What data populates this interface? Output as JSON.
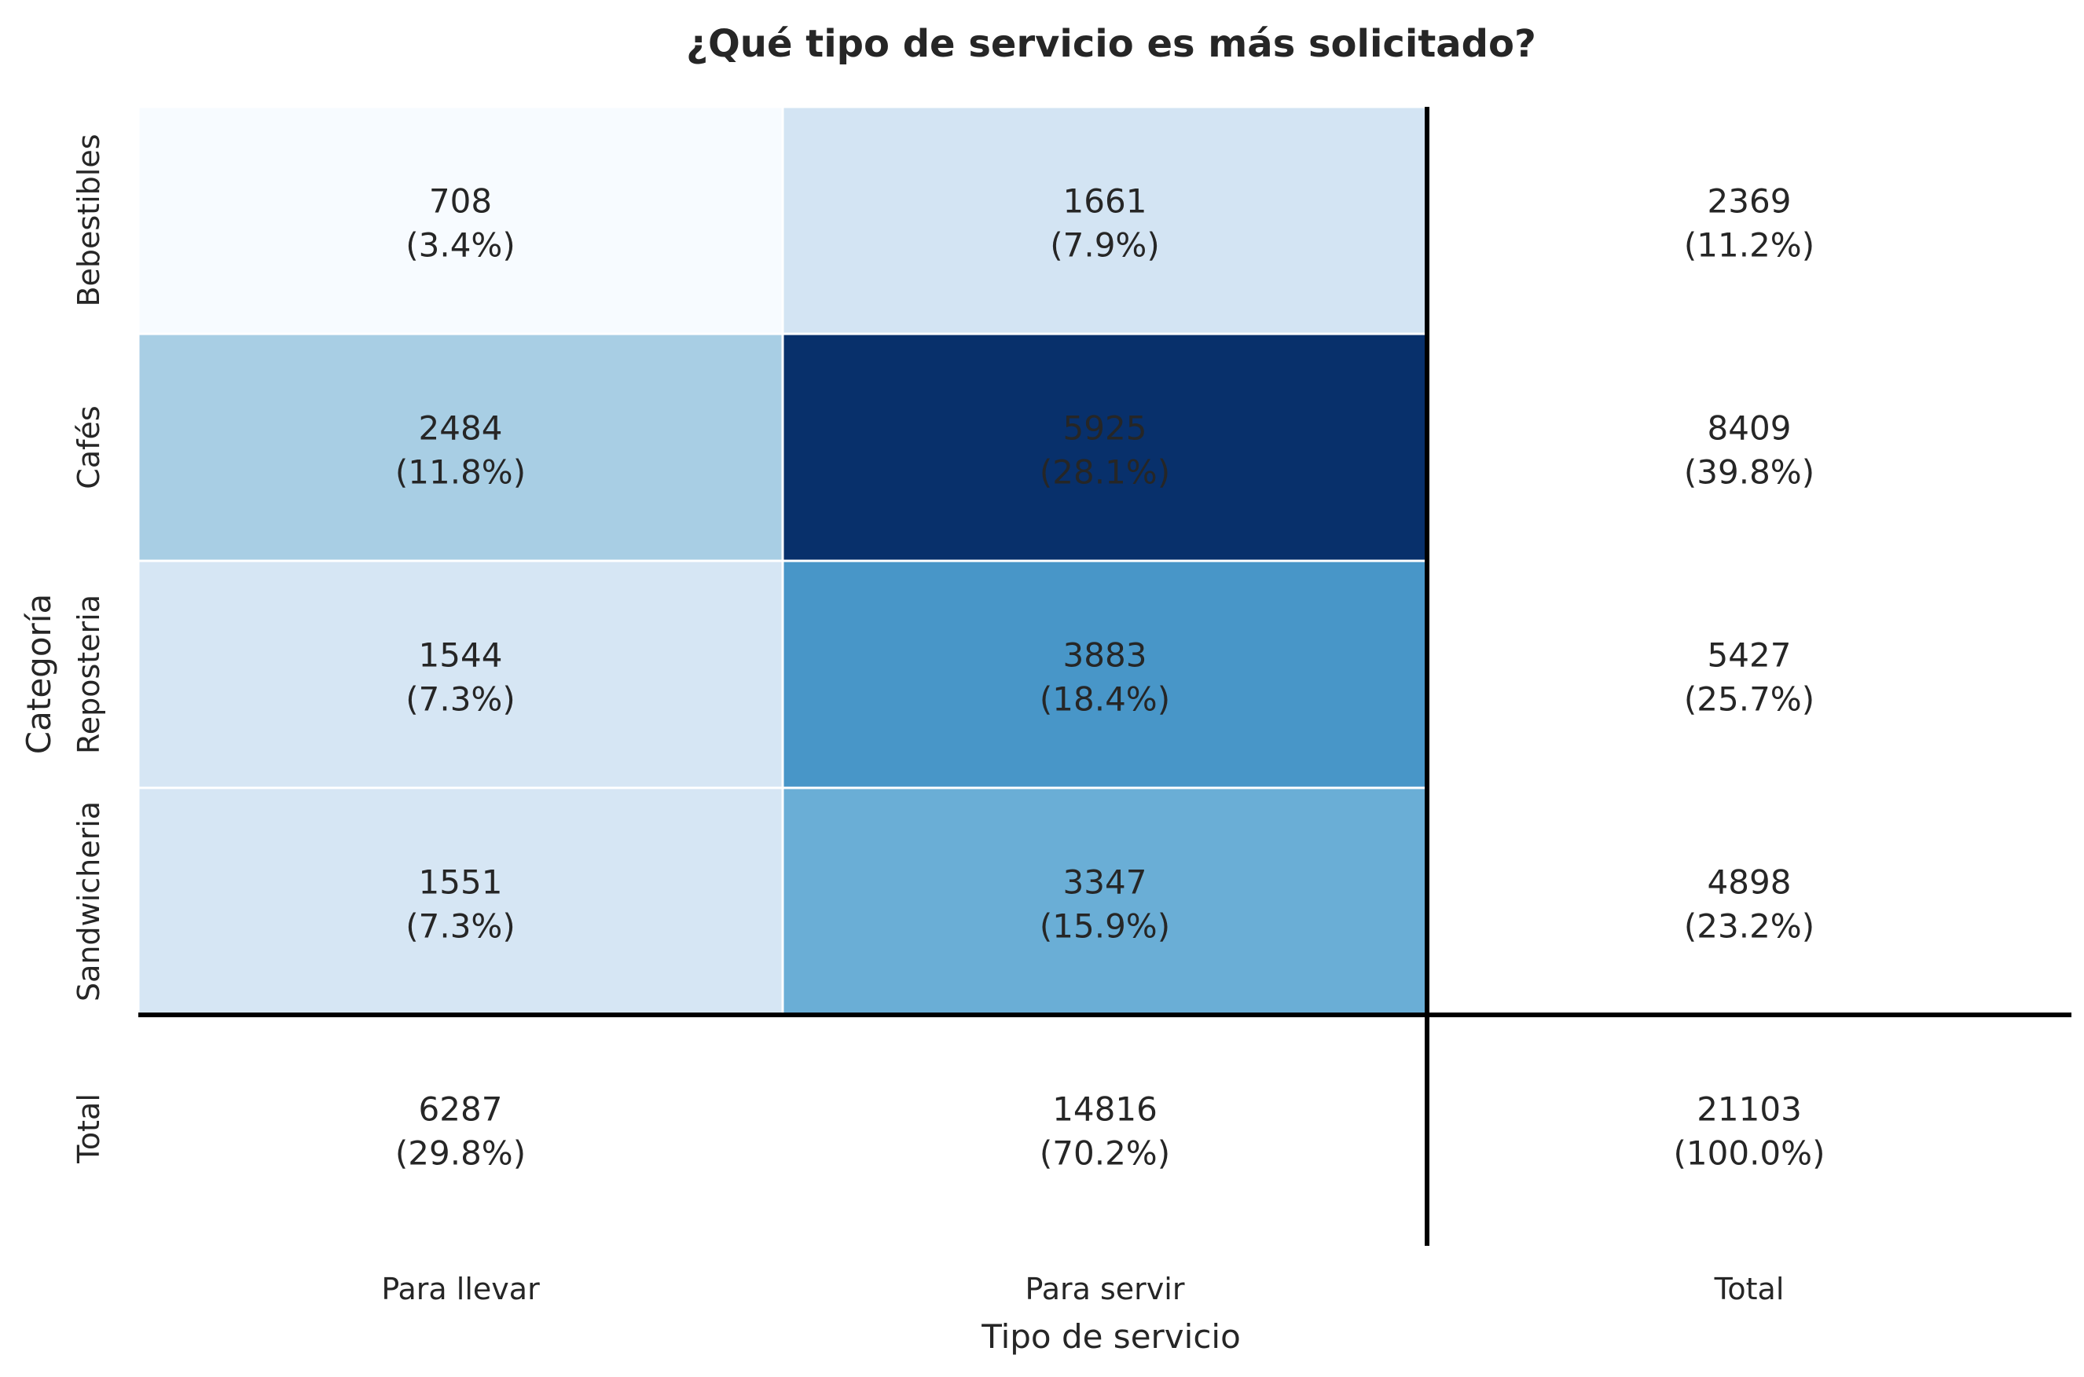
{
  "chart_data": {
    "type": "heatmap",
    "title": "¿Qué tipo de servicio es más solicitado?",
    "xlabel": "Tipo de servicio",
    "ylabel": "Categoría",
    "x_categories": [
      "Para llevar",
      "Para servir",
      "Total"
    ],
    "y_categories": [
      "Bebestibles",
      "Cafés",
      "Reposteria",
      "Sandwicheria",
      "Total"
    ],
    "values": [
      [
        708,
        1661,
        2369
      ],
      [
        2484,
        5925,
        8409
      ],
      [
        1544,
        3883,
        5427
      ],
      [
        1551,
        3347,
        4898
      ],
      [
        6287,
        14816,
        21103
      ]
    ],
    "percent_labels": [
      [
        "(3.4%)",
        "(7.9%)",
        "(11.2%)"
      ],
      [
        "(11.8%)",
        "(28.1%)",
        "(39.8%)"
      ],
      [
        "(7.3%)",
        "(18.4%)",
        "(25.7%)"
      ],
      [
        "(7.3%)",
        "(15.9%)",
        "(23.2%)"
      ],
      [
        "(29.8%)",
        "(70.2%)",
        "(100.0%)"
      ]
    ],
    "colormap": "Blues",
    "shaded_region": "inner cells only (totals row and column unshaded)",
    "colors": {
      "Bebestibles|Para llevar": "#f7fbff",
      "Bebestibles|Para servir": "#d3e4f3",
      "Cafés|Para llevar": "#a8cee4",
      "Cafés|Para servir": "#08306b",
      "Reposteria|Para llevar": "#d6e6f4",
      "Reposteria|Para servir": "#4896c8",
      "Sandwicheria|Para llevar": "#d6e6f4",
      "Sandwicheria|Para servir": "#6aaed6"
    },
    "text_color": "#262626",
    "separator_color": "#000000",
    "grid": false,
    "legend": "none"
  }
}
